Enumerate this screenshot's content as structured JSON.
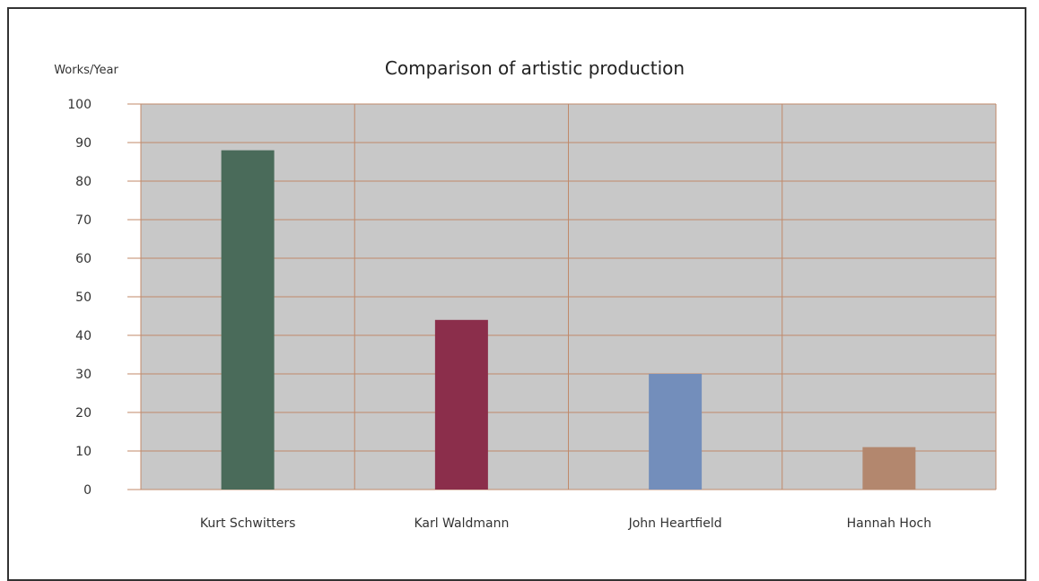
{
  "chart_data": {
    "type": "bar",
    "title": "Comparison of artistic production",
    "ylabel": "Works/Year",
    "xlabel": "",
    "categories": [
      "Kurt Schwitters",
      "Karl Waldmann",
      "John Heartfield",
      "Hannah Hoch"
    ],
    "values": [
      88,
      44,
      30,
      11
    ],
    "colors": [
      "#4a6b5a",
      "#8b2e4b",
      "#738ebb",
      "#b3876e"
    ],
    "ylim": [
      0,
      100
    ],
    "yticks": [
      0,
      10,
      20,
      30,
      40,
      50,
      60,
      70,
      80,
      90,
      100
    ],
    "grid": true,
    "legend": "none",
    "plot_background": "#c8c8c8",
    "grid_color": "#c0896a"
  }
}
